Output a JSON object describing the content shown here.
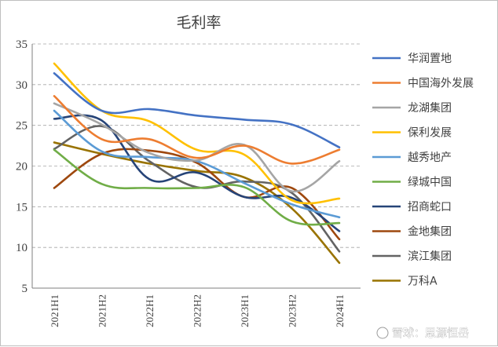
{
  "chart_data": {
    "type": "line",
    "title": "毛利率",
    "xlabel": "",
    "ylabel": "",
    "categories": [
      "2021H1",
      "2021H2",
      "2022H1",
      "2022H2",
      "2023H1",
      "2023H2",
      "2024H1"
    ],
    "ylim": [
      5,
      35
    ],
    "yticks": [
      5,
      10,
      15,
      20,
      25,
      30,
      35
    ],
    "grid": "horizontal dashed",
    "legend_position": "right",
    "smooth": true,
    "series": [
      {
        "name": "华润置地",
        "color": "#4472C4",
        "values": [
          31.4,
          26.8,
          27.0,
          26.2,
          25.7,
          25.1,
          22.3
        ]
      },
      {
        "name": "中国海外发展",
        "color": "#ED7D31",
        "values": [
          28.6,
          23.3,
          23.3,
          21.0,
          22.5,
          20.3,
          22.0
        ]
      },
      {
        "name": "龙湖集团",
        "color": "#A5A5A5",
        "values": [
          27.7,
          25.1,
          21.6,
          20.7,
          22.6,
          16.9,
          20.6
        ]
      },
      {
        "name": "保利发展",
        "color": "#FFC000",
        "values": [
          32.6,
          26.8,
          25.5,
          22.0,
          21.4,
          15.8,
          16.0
        ]
      },
      {
        "name": "越秀地产",
        "color": "#5B9BD5",
        "values": [
          26.8,
          21.8,
          21.1,
          20.6,
          17.9,
          15.3,
          13.7
        ]
      },
      {
        "name": "绿城中国",
        "color": "#70AD47",
        "values": [
          22.0,
          17.8,
          17.3,
          17.3,
          17.4,
          13.2,
          13.0
        ]
      },
      {
        "name": "招商蛇口",
        "color": "#264478",
        "values": [
          25.8,
          25.6,
          18.4,
          19.2,
          16.2,
          16.1,
          12.0
        ]
      },
      {
        "name": "金地集团",
        "color": "#9E480E",
        "values": [
          17.3,
          21.5,
          21.9,
          20.4,
          16.2,
          17.3,
          11.0
        ]
      },
      {
        "name": "滨江集团",
        "color": "#636363",
        "values": [
          22.1,
          24.9,
          20.6,
          17.4,
          18.1,
          16.7,
          9.5
        ]
      },
      {
        "name": "万科A",
        "color": "#997300",
        "values": [
          22.9,
          21.5,
          20.3,
          19.4,
          18.6,
          14.8,
          8.1
        ]
      }
    ]
  },
  "watermark": "雪球：思源恒岳"
}
